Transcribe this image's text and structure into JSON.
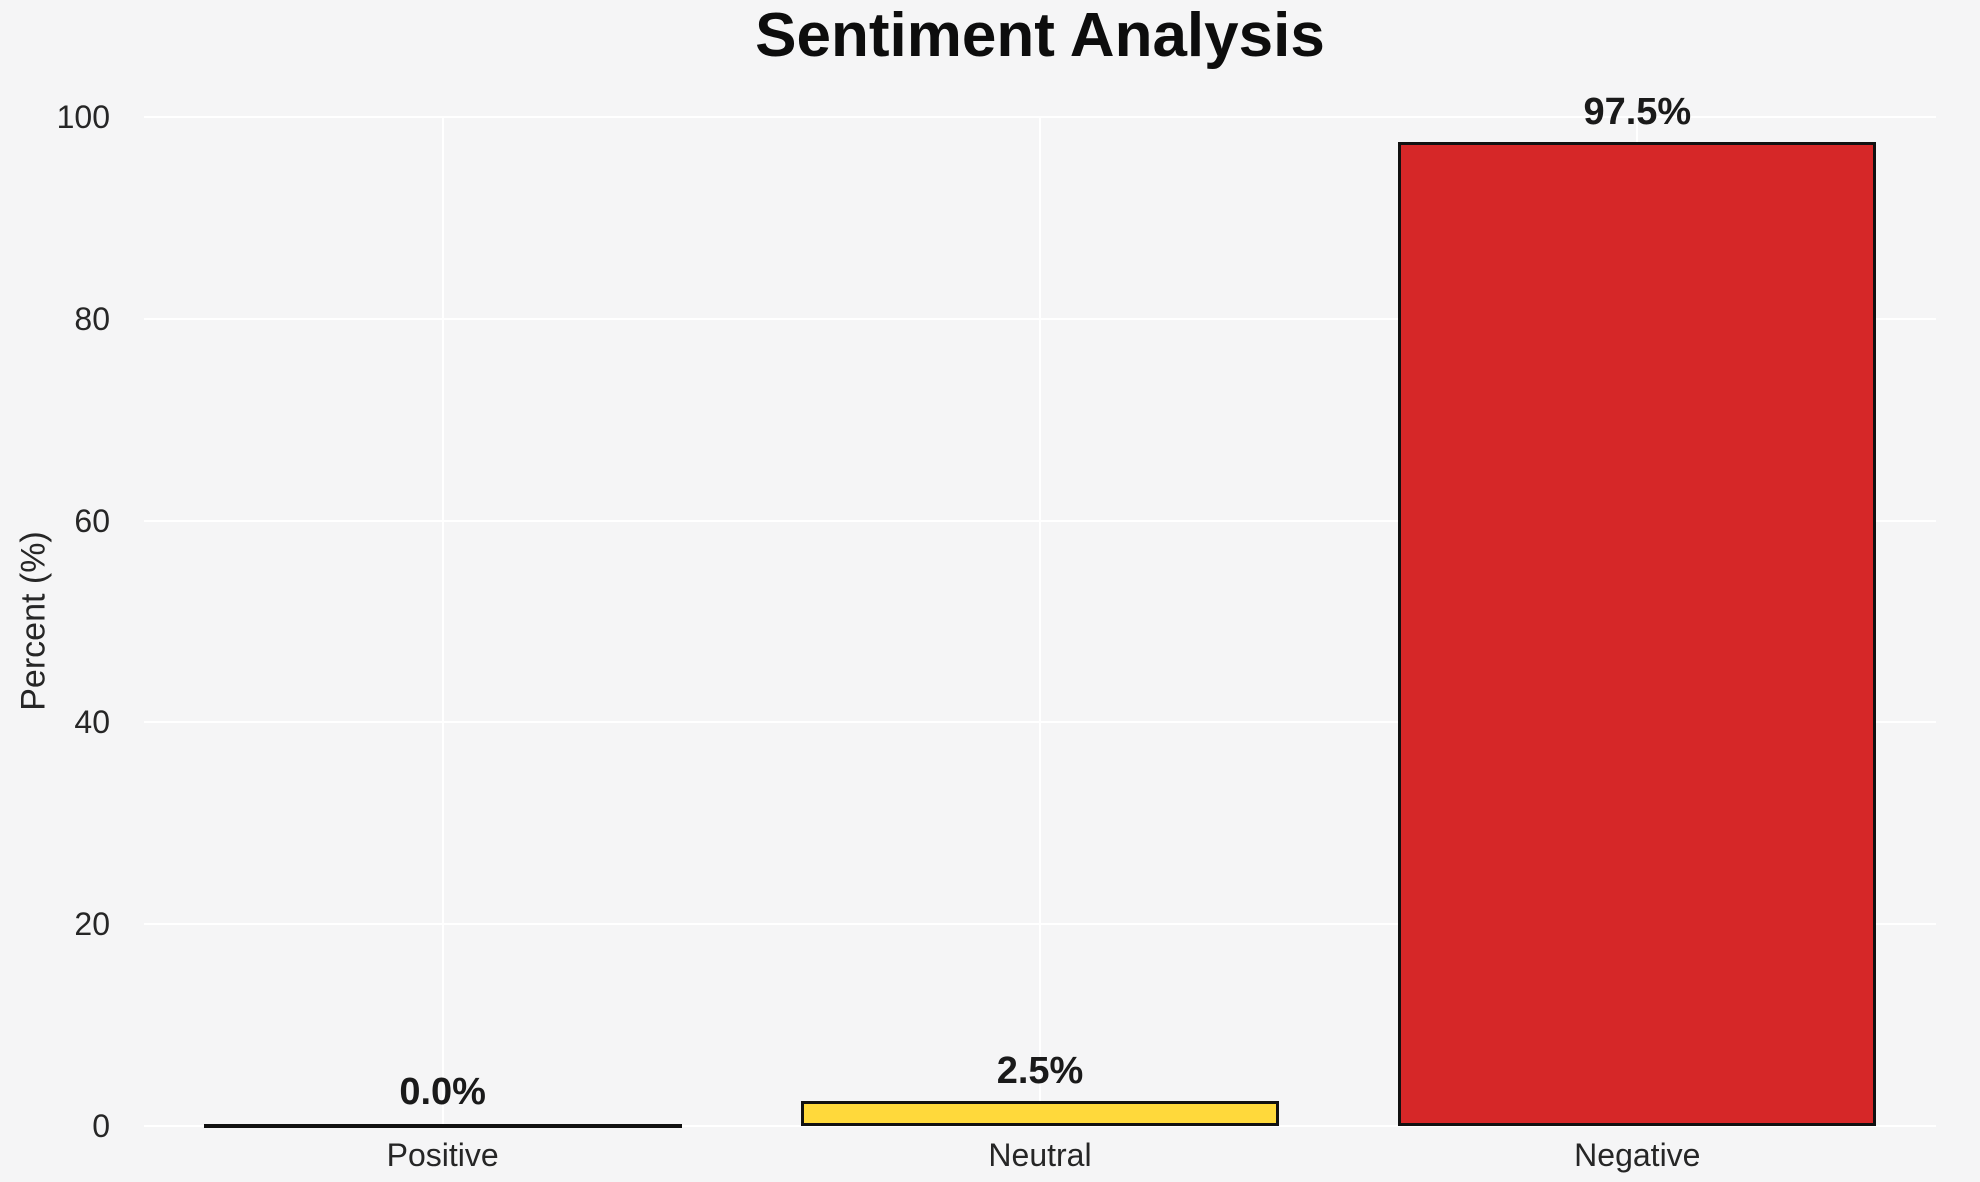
{
  "chart_data": {
    "type": "bar",
    "title": "Sentiment Analysis",
    "xlabel": "",
    "ylabel": "Percent (%)",
    "categories": [
      "Positive",
      "Neutral",
      "Negative"
    ],
    "values": [
      0.0,
      2.5,
      97.5
    ],
    "value_labels": [
      "0.0%",
      "2.5%",
      "97.5%"
    ],
    "yticks": [
      0,
      20,
      40,
      60,
      80,
      100
    ],
    "ylim": [
      0,
      100
    ],
    "grid": "white horizontal lines at each y tick and vertical line at each category center",
    "legend": "none",
    "bar_fills": [
      null,
      "#FFD93B",
      "#D62728"
    ],
    "colors": {
      "background": "#F5F5F6",
      "gridline": "#FFFFFF",
      "bar_edge": "#111111",
      "neutral_bar": "#FFD93B",
      "negative_bar": "#D62728",
      "text": "#1A1A1A"
    }
  }
}
